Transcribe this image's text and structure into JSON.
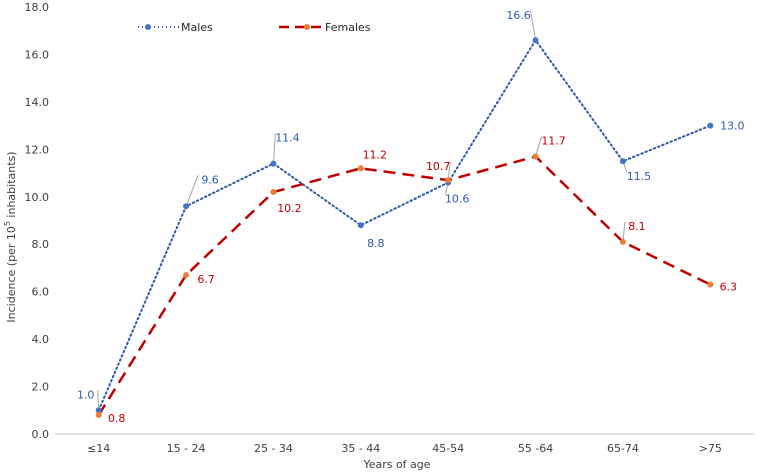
{
  "chart_data": {
    "type": "line",
    "categories": [
      "≤14",
      "15 - 24",
      "25 - 34",
      "35 - 44",
      "45-54",
      "55 -64",
      "65-74",
      ">75"
    ],
    "series": [
      {
        "name": "Males",
        "values": [
          1.0,
          9.6,
          11.4,
          8.8,
          10.6,
          16.6,
          11.5,
          13.0
        ],
        "labels": [
          "1.0",
          "9.6",
          "11.4",
          "8.8",
          "10.6",
          "16.6",
          "11.5",
          "13.0"
        ],
        "color": "#2e5aa8",
        "marker_color": "#4472c4",
        "line_style": "dotted"
      },
      {
        "name": "Females",
        "values": [
          0.8,
          6.7,
          10.2,
          11.2,
          10.7,
          11.7,
          8.1,
          6.3
        ],
        "labels": [
          "0.8",
          "6.7",
          "10.2",
          "11.2",
          "10.7",
          "11.7",
          "8.1",
          "6.3"
        ],
        "color": "#c00000",
        "marker_color": "#ed7d31",
        "line_style": "dashed"
      }
    ],
    "xlabel": "Years of age",
    "ylabel_prefix": "Incidence (per 10",
    "ylabel_sup": "5",
    "ylabel_suffix": " inhabitants)",
    "ylim": [
      0,
      18
    ],
    "yticks": [
      "0.0",
      "2.0",
      "4.0",
      "6.0",
      "8.0",
      "10.0",
      "12.0",
      "14.0",
      "16.0",
      "18.0"
    ],
    "grid": false,
    "legend_position": "top-left"
  }
}
